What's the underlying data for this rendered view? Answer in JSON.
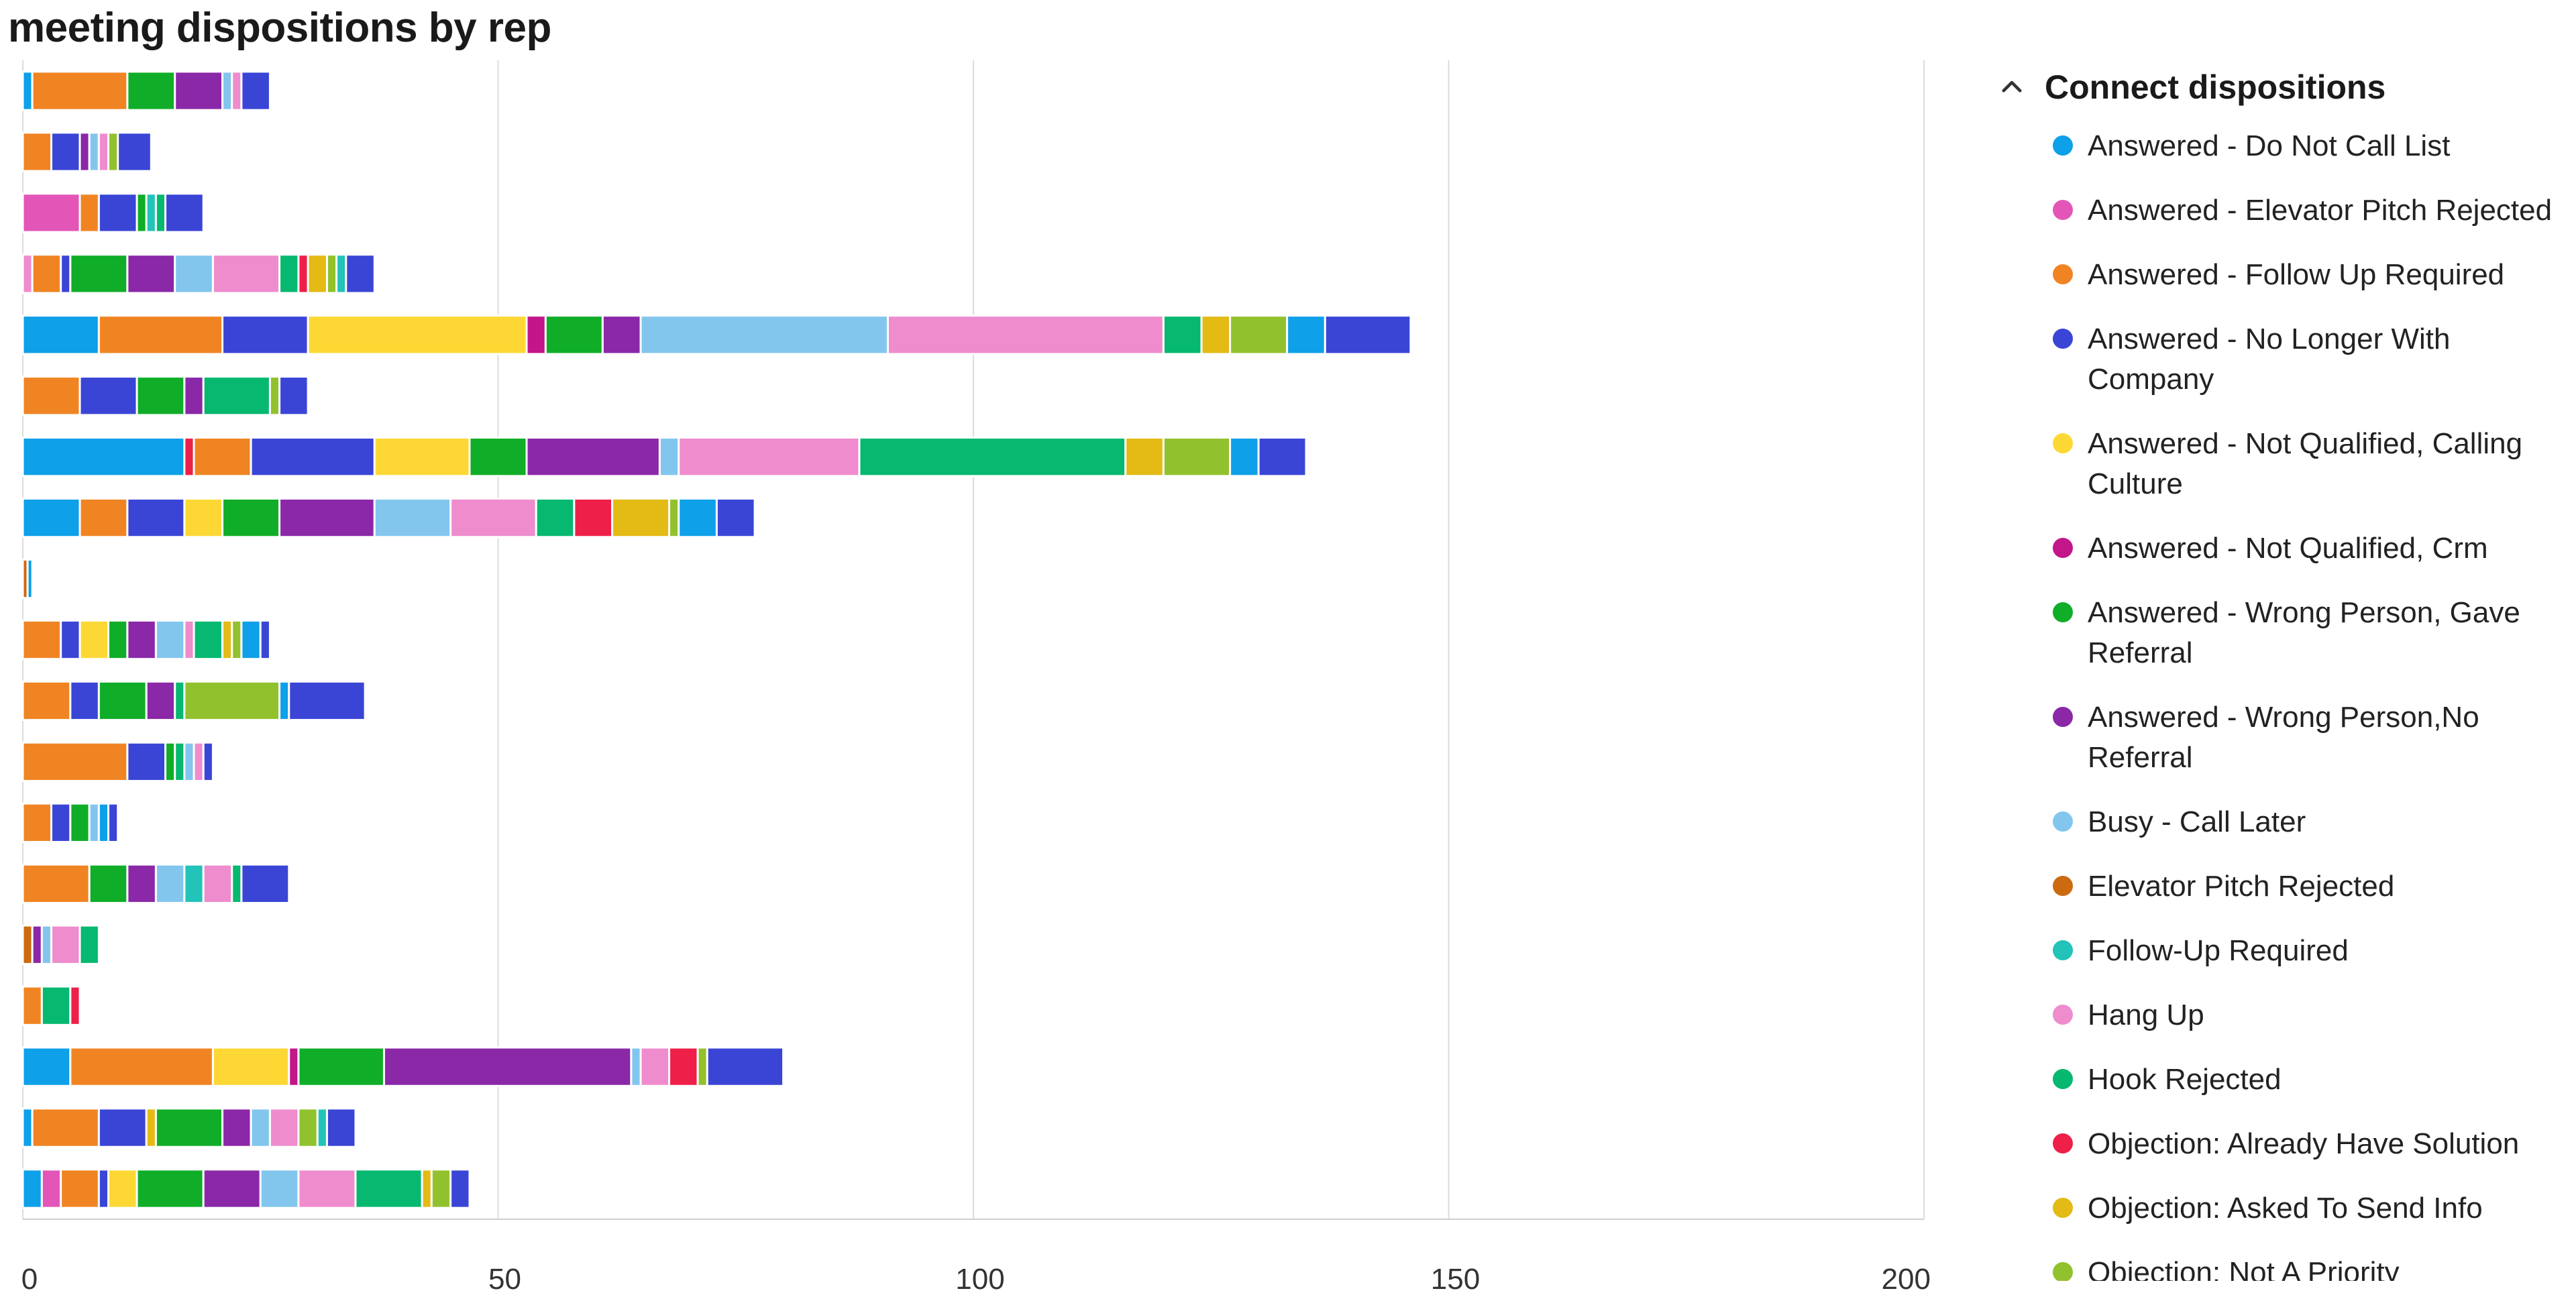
{
  "chart_data": {
    "type": "bar",
    "orientation": "horizontal",
    "stacked": true,
    "title": "meeting dispositions by rep",
    "xlabel": "",
    "ylabel": "",
    "xlim": [
      0,
      200
    ],
    "xticks": [
      0,
      50,
      100,
      150,
      200
    ],
    "grid": true,
    "legend_position": "right",
    "legend_title": "Connect dispositions",
    "legend_collapsible": true,
    "dispositions": [
      {
        "name": "Answered - Do Not Call List",
        "color": "#0ea0e8"
      },
      {
        "name": "Answered - Elevator Pitch Rejected",
        "color": "#e356b8"
      },
      {
        "name": "Answered - Follow Up Required",
        "color": "#f08423"
      },
      {
        "name": "Answered - No Longer With Company",
        "color": "#3a45d6"
      },
      {
        "name": "Answered - Not Qualified, Calling Culture",
        "color": "#fdd835"
      },
      {
        "name": "Answered - Not Qualified, Crm",
        "color": "#c2168a"
      },
      {
        "name": "Answered - Wrong Person, Gave Referral",
        "color": "#10ad28"
      },
      {
        "name": "Answered - Wrong Person,No Referral",
        "color": "#8a28a8"
      },
      {
        "name": "Busy - Call Later",
        "color": "#82c6ee"
      },
      {
        "name": "Elevator Pitch Rejected",
        "color": "#cc6a10"
      },
      {
        "name": "Follow-Up Required",
        "color": "#22c3b8"
      },
      {
        "name": "Hang Up",
        "color": "#ee8cce"
      },
      {
        "name": "Hook Rejected",
        "color": "#06b870"
      },
      {
        "name": "Objection: Already Have Solution",
        "color": "#ee1f48"
      },
      {
        "name": "Objection: Asked To Send Info",
        "color": "#e4ba14"
      },
      {
        "name": "Objection: Not A Priority",
        "color": "#92c12e"
      }
    ],
    "bars": [
      {
        "segments": [
          [
            0,
            1
          ],
          [
            2,
            10
          ],
          [
            6,
            5
          ],
          [
            7,
            5
          ],
          [
            8,
            1
          ],
          [
            11,
            1
          ],
          [
            3,
            3
          ]
        ]
      },
      {
        "segments": [
          [
            2,
            3
          ],
          [
            3,
            3
          ],
          [
            7,
            1
          ],
          [
            8,
            1
          ],
          [
            11,
            1
          ],
          [
            15,
            1
          ],
          [
            3,
            3.5
          ]
        ]
      },
      {
        "segments": [
          [
            1,
            6
          ],
          [
            2,
            2
          ],
          [
            3,
            4
          ],
          [
            6,
            1
          ],
          [
            10,
            1
          ],
          [
            12,
            1
          ],
          [
            3,
            4
          ]
        ]
      },
      {
        "segments": [
          [
            11,
            1
          ],
          [
            2,
            3
          ],
          [
            3,
            1
          ],
          [
            6,
            6
          ],
          [
            7,
            5
          ],
          [
            8,
            4
          ],
          [
            11,
            7
          ],
          [
            12,
            2
          ],
          [
            13,
            1
          ],
          [
            14,
            2
          ],
          [
            15,
            1
          ],
          [
            10,
            1
          ],
          [
            3,
            3
          ]
        ]
      },
      {
        "segments": [
          [
            0,
            8
          ],
          [
            2,
            13
          ],
          [
            3,
            9
          ],
          [
            4,
            23
          ],
          [
            5,
            2
          ],
          [
            6,
            6
          ],
          [
            7,
            4
          ],
          [
            8,
            26
          ],
          [
            11,
            29
          ],
          [
            12,
            4
          ],
          [
            14,
            3
          ],
          [
            15,
            6
          ],
          [
            0,
            4
          ],
          [
            3,
            9
          ]
        ]
      },
      {
        "segments": [
          [
            2,
            6
          ],
          [
            3,
            6
          ],
          [
            6,
            5
          ],
          [
            7,
            2
          ],
          [
            12,
            7
          ],
          [
            15,
            1
          ],
          [
            3,
            3
          ]
        ]
      },
      {
        "segments": [
          [
            0,
            17
          ],
          [
            13,
            1
          ],
          [
            2,
            6
          ],
          [
            3,
            13
          ],
          [
            4,
            10
          ],
          [
            6,
            6
          ],
          [
            7,
            14
          ],
          [
            8,
            2
          ],
          [
            11,
            19
          ],
          [
            12,
            28
          ],
          [
            14,
            4
          ],
          [
            15,
            7
          ],
          [
            0,
            3
          ],
          [
            3,
            5
          ]
        ]
      },
      {
        "segments": [
          [
            0,
            6
          ],
          [
            2,
            5
          ],
          [
            3,
            6
          ],
          [
            4,
            4
          ],
          [
            6,
            6
          ],
          [
            7,
            10
          ],
          [
            8,
            8
          ],
          [
            11,
            9
          ],
          [
            12,
            4
          ],
          [
            13,
            4
          ],
          [
            14,
            6
          ],
          [
            15,
            1
          ],
          [
            0,
            4
          ],
          [
            3,
            4
          ]
        ]
      },
      {
        "segments": [
          [
            9,
            0.5
          ],
          [
            0,
            0.5
          ]
        ]
      },
      {
        "segments": [
          [
            2,
            4
          ],
          [
            3,
            2
          ],
          [
            4,
            3
          ],
          [
            6,
            2
          ],
          [
            7,
            3
          ],
          [
            8,
            3
          ],
          [
            11,
            1
          ],
          [
            12,
            3
          ],
          [
            14,
            1
          ],
          [
            15,
            1
          ],
          [
            0,
            2
          ],
          [
            3,
            1
          ]
        ]
      },
      {
        "segments": [
          [
            2,
            5
          ],
          [
            3,
            3
          ],
          [
            6,
            5
          ],
          [
            7,
            3
          ],
          [
            12,
            1
          ],
          [
            15,
            10
          ],
          [
            0,
            1
          ],
          [
            3,
            8
          ]
        ]
      },
      {
        "segments": [
          [
            2,
            11
          ],
          [
            3,
            4
          ],
          [
            6,
            1
          ],
          [
            12,
            1
          ],
          [
            8,
            1
          ],
          [
            11,
            1
          ],
          [
            3,
            1
          ]
        ]
      },
      {
        "segments": [
          [
            2,
            3
          ],
          [
            3,
            2
          ],
          [
            6,
            2
          ],
          [
            8,
            1
          ],
          [
            0,
            1
          ],
          [
            3,
            1
          ]
        ]
      },
      {
        "segments": [
          [
            2,
            7
          ],
          [
            6,
            4
          ],
          [
            7,
            3
          ],
          [
            8,
            3
          ],
          [
            10,
            2
          ],
          [
            11,
            3
          ],
          [
            12,
            1
          ],
          [
            3,
            5
          ]
        ]
      },
      {
        "segments": [
          [
            9,
            1
          ],
          [
            7,
            1
          ],
          [
            8,
            1
          ],
          [
            11,
            3
          ],
          [
            12,
            2
          ]
        ]
      },
      {
        "segments": [
          [
            2,
            2
          ],
          [
            12,
            3
          ],
          [
            13,
            1
          ]
        ]
      },
      {
        "segments": [
          [
            0,
            5
          ],
          [
            2,
            15
          ],
          [
            4,
            8
          ],
          [
            5,
            1
          ],
          [
            6,
            9
          ],
          [
            7,
            26
          ],
          [
            8,
            1
          ],
          [
            11,
            3
          ],
          [
            13,
            3
          ],
          [
            15,
            1
          ],
          [
            3,
            8
          ]
        ]
      },
      {
        "segments": [
          [
            0,
            1
          ],
          [
            2,
            7
          ],
          [
            3,
            5
          ],
          [
            14,
            1
          ],
          [
            6,
            7
          ],
          [
            7,
            3
          ],
          [
            8,
            2
          ],
          [
            11,
            3
          ],
          [
            15,
            2
          ],
          [
            10,
            1
          ],
          [
            3,
            3
          ]
        ]
      },
      {
        "segments": [
          [
            0,
            2
          ],
          [
            1,
            2
          ],
          [
            2,
            4
          ],
          [
            3,
            1
          ],
          [
            4,
            3
          ],
          [
            6,
            7
          ],
          [
            7,
            6
          ],
          [
            8,
            4
          ],
          [
            11,
            6
          ],
          [
            12,
            7
          ],
          [
            14,
            1
          ],
          [
            15,
            2
          ],
          [
            3,
            2
          ]
        ]
      }
    ]
  }
}
